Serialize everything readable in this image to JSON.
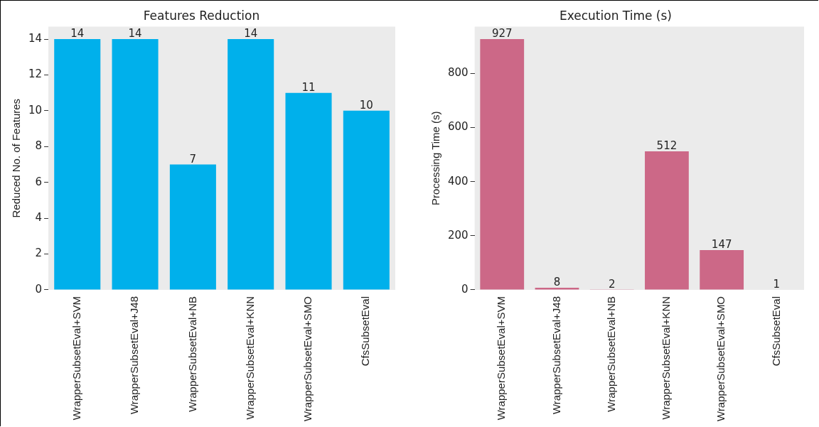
{
  "chart_data": [
    {
      "type": "bar",
      "title": "Features Reduction",
      "ylabel": "Reduced No. of Features",
      "categories": [
        "WrapperSubsetEval+SVM",
        "WrapperSubsetEval+J48",
        "WrapperSubsetEval+NB",
        "WrapperSubsetEval+KNN",
        "WrapperSubsetEval+SMO",
        "CfsSubsetEval"
      ],
      "values": [
        14,
        14,
        7,
        14,
        11,
        10
      ],
      "color": "#00b0eb",
      "ylim": [
        0,
        14.7
      ],
      "yticks": [
        0,
        2,
        4,
        6,
        8,
        10,
        12,
        14
      ],
      "grid": false,
      "legend": false,
      "data_labels": true
    },
    {
      "type": "bar",
      "title": "Execution Time (s)",
      "ylabel": "Processing Time (s)",
      "categories": [
        "WrapperSubsetEval+SVM",
        "WrapperSubsetEval+J48",
        "WrapperSubsetEval+NB",
        "WrapperSubsetEval+KNN",
        "WrapperSubsetEval+SMO",
        "CfsSubsetEval"
      ],
      "values": [
        927,
        8,
        2,
        512,
        147,
        1
      ],
      "color": "#cc6887",
      "ylim": [
        0,
        973
      ],
      "yticks": [
        0,
        200,
        400,
        600,
        800
      ],
      "grid": false,
      "legend": false,
      "data_labels": true
    }
  ]
}
